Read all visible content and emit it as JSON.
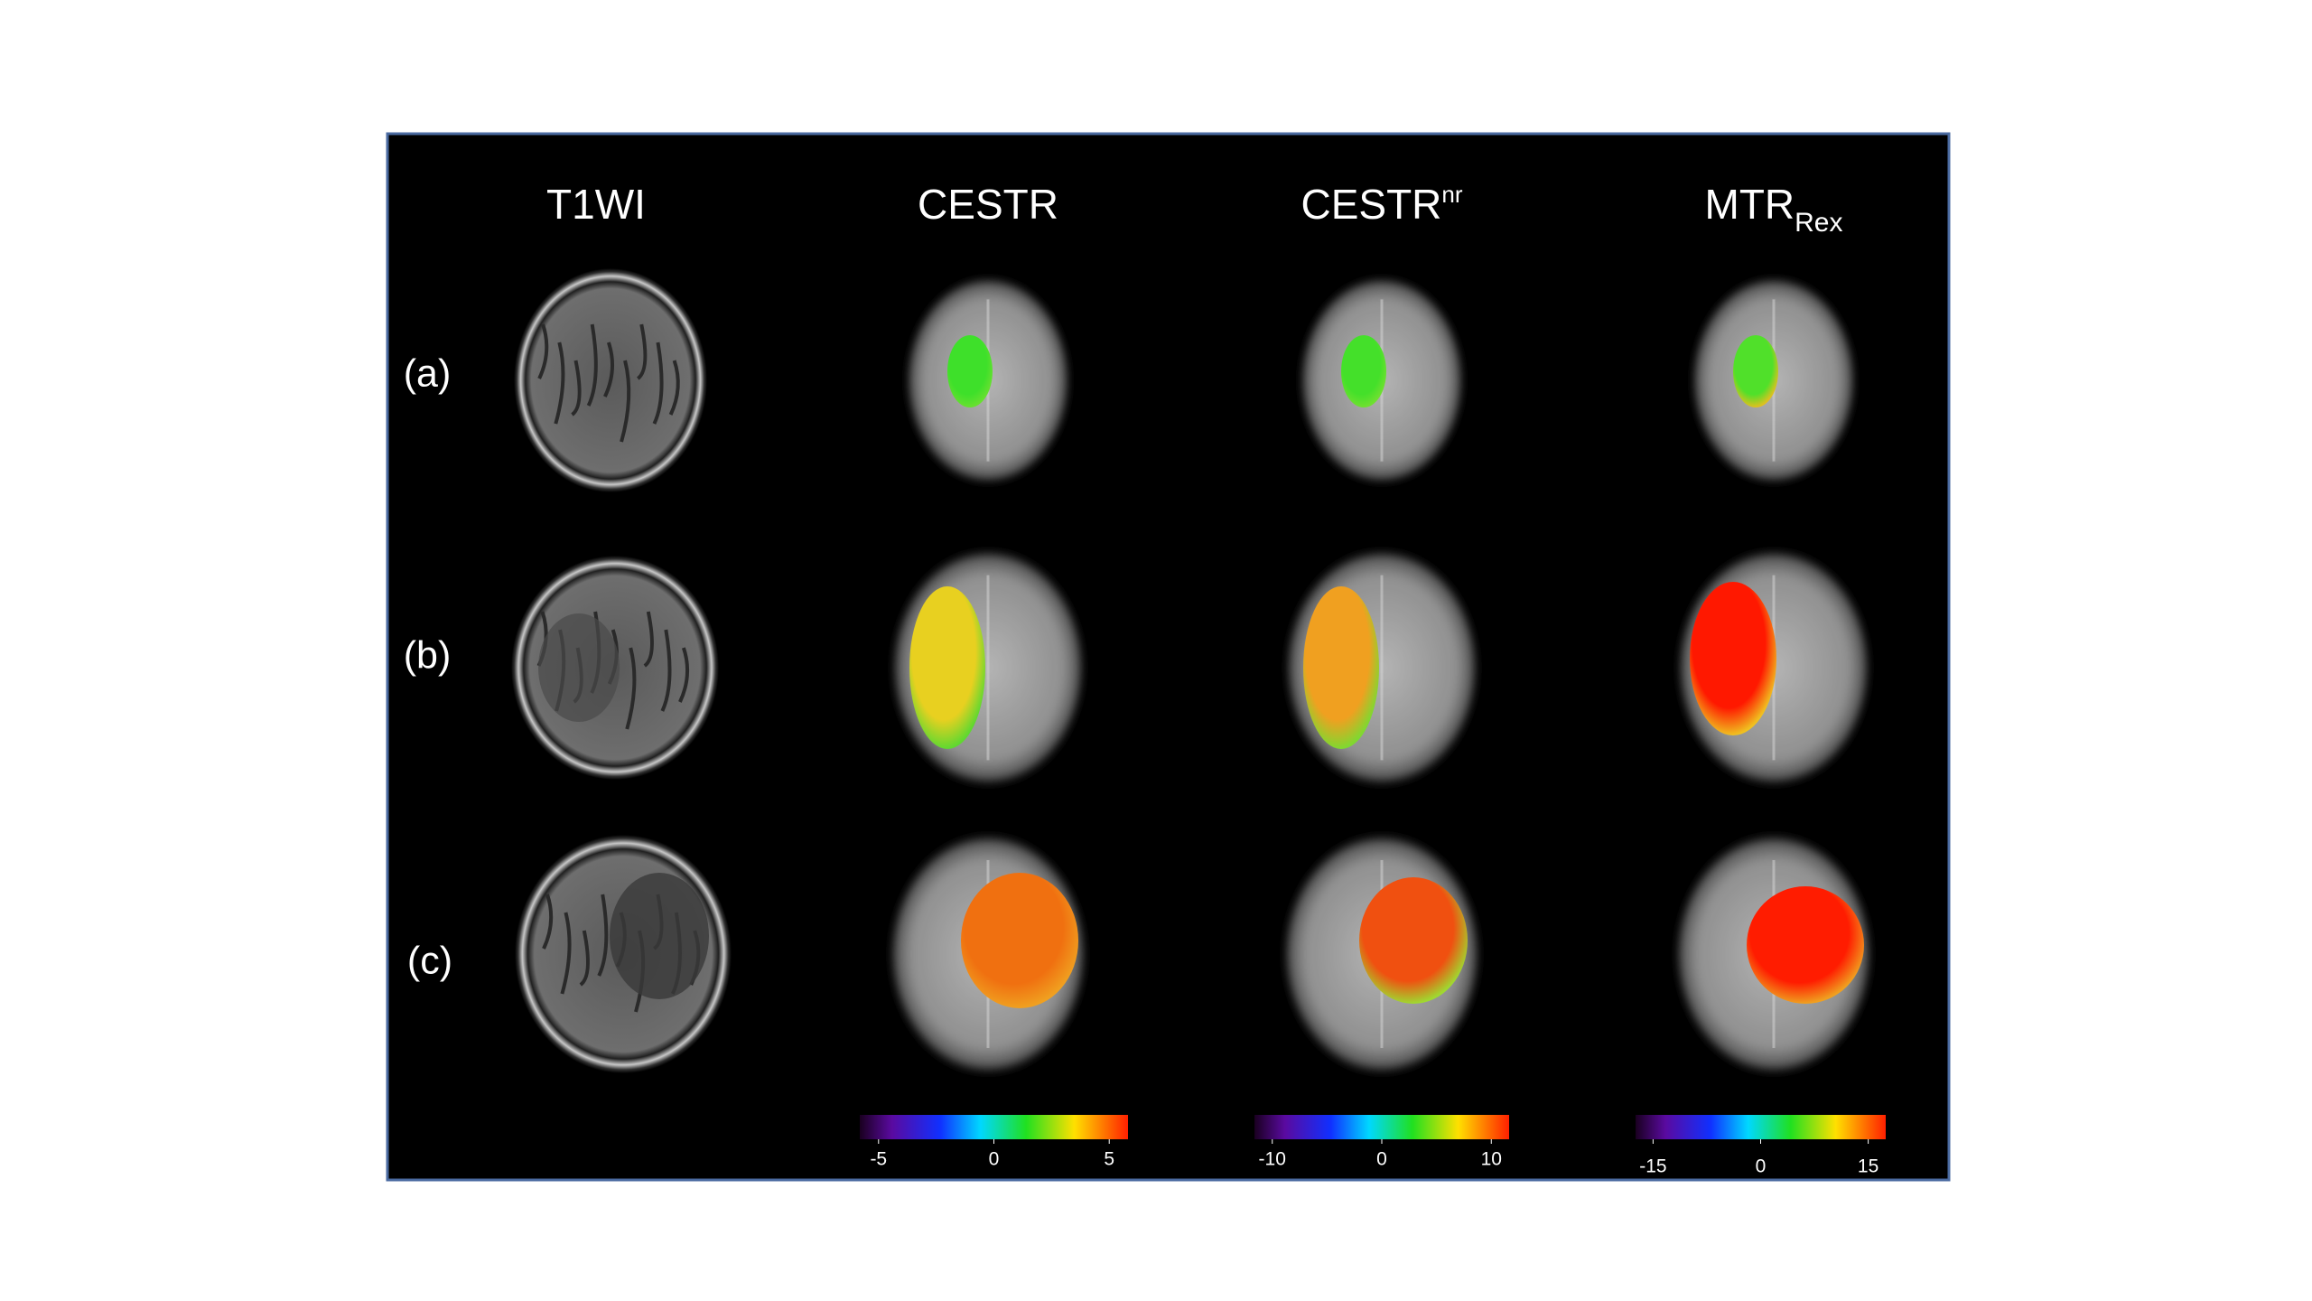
{
  "headers": [
    {
      "text": "T1WI"
    },
    {
      "text": "CESTR"
    },
    {
      "text": "CESTR",
      "sup": "nr"
    },
    {
      "text": "MTR",
      "sub": "Rex"
    }
  ],
  "rows": [
    "(a)",
    "(b)",
    "(c)"
  ],
  "colorbars": [
    {
      "ticks": [
        -5,
        0,
        5
      ]
    },
    {
      "ticks": [
        -10,
        0,
        10
      ]
    },
    {
      "ticks": [
        -15,
        0,
        15
      ]
    }
  ]
}
